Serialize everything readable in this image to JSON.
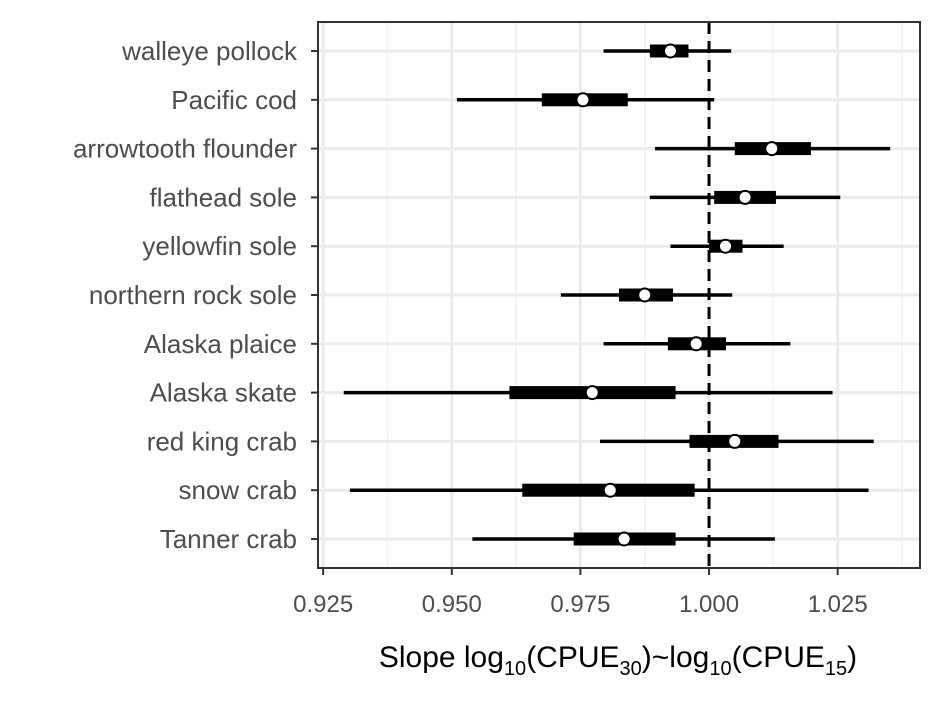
{
  "chart_data": {
    "type": "forest",
    "xlabel": {
      "base": "Slope log",
      "sub1": "10",
      "arg1": "(CPUE",
      "sub2": "30",
      "mid": ")~log",
      "sub3": "10",
      "arg2": "(CPUE",
      "sub4": "15",
      "close": ")"
    },
    "xlim": [
      0.924,
      1.041
    ],
    "x_ticks": [
      0.925,
      0.95,
      0.975,
      1.0,
      1.025
    ],
    "x_tick_labels": [
      "0.925",
      "0.950",
      "0.975",
      "1.000",
      "1.025"
    ],
    "reference_line": 1.0,
    "grid": true,
    "categories": [
      "walleye pollock",
      "Pacific cod",
      "arrowtooth flounder",
      "flathead sole",
      "yellowfin sole",
      "northern rock sole",
      "Alaska plaice",
      "Alaska skate",
      "red king crab",
      "snow crab",
      "Tanner crab"
    ],
    "estimates": [
      {
        "median": 0.9925,
        "inner": [
          0.9885,
          0.996
        ],
        "outer": [
          0.9795,
          1.0043
        ]
      },
      {
        "median": 0.9755,
        "inner": [
          0.9675,
          0.9842
        ],
        "outer": [
          0.951,
          1.001
        ]
      },
      {
        "median": 1.0122,
        "inner": [
          1.005,
          1.0198
        ],
        "outer": [
          0.9895,
          1.0352
        ]
      },
      {
        "median": 1.007,
        "inner": [
          1.001,
          1.013
        ],
        "outer": [
          0.9885,
          1.0255
        ]
      },
      {
        "median": 1.0032,
        "inner": [
          1.0,
          1.0065
        ],
        "outer": [
          0.9925,
          1.0145
        ]
      },
      {
        "median": 0.9875,
        "inner": [
          0.9825,
          0.993
        ],
        "outer": [
          0.9712,
          1.0045
        ]
      },
      {
        "median": 0.9975,
        "inner": [
          0.992,
          1.0033
        ],
        "outer": [
          0.9795,
          1.0158
        ]
      },
      {
        "median": 0.9773,
        "inner": [
          0.9612,
          0.9935
        ],
        "outer": [
          0.929,
          1.024
        ]
      },
      {
        "median": 1.005,
        "inner": [
          0.9962,
          1.0135
        ],
        "outer": [
          0.9788,
          1.032
        ]
      },
      {
        "median": 0.9808,
        "inner": [
          0.9637,
          0.9972
        ],
        "outer": [
          0.9302,
          1.031
        ]
      },
      {
        "median": 0.9835,
        "inner": [
          0.9737,
          0.9935
        ],
        "outer": [
          0.954,
          1.0128
        ]
      }
    ]
  }
}
